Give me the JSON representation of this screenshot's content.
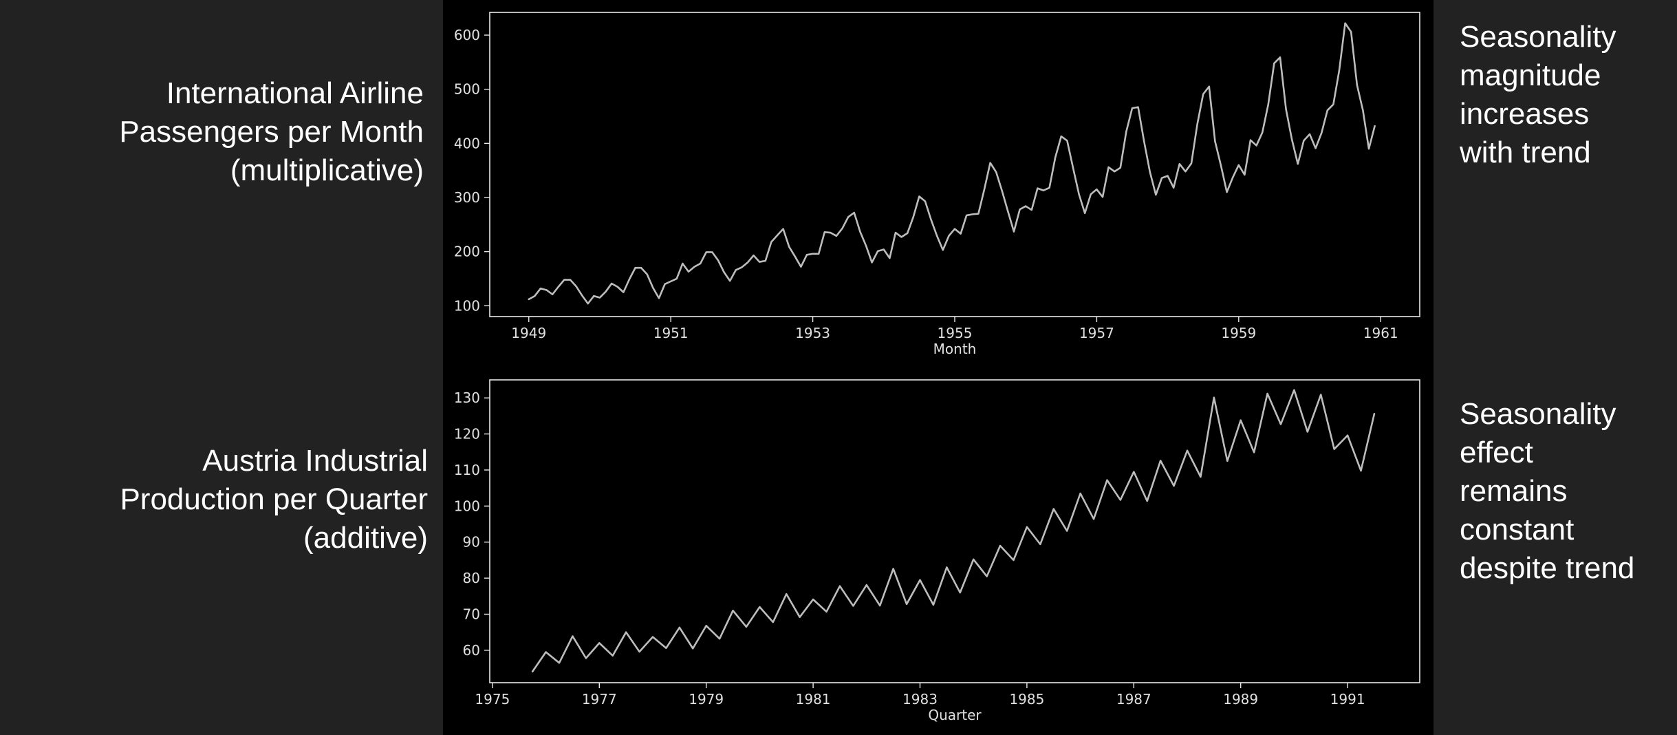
{
  "labels": {
    "top_left": [
      "International Airline",
      "Passengers per Month",
      "(multiplicative)"
    ],
    "bottom_left": [
      "Austria Industrial",
      "Production per Quarter",
      "(additive)"
    ],
    "top_right": [
      "Seasonality",
      "magnitude",
      "increases",
      "with trend"
    ],
    "bottom_right": [
      "Seasonality",
      "effect",
      "remains",
      "constant",
      "despite trend"
    ]
  },
  "colors": {
    "background": "#222222",
    "plot_background": "#000000",
    "line": "#bdbdbd",
    "frame": "#e8e8e8",
    "text": "#ffffff"
  },
  "chart_data": [
    {
      "type": "line",
      "xlabel": "Month",
      "ylabel": "",
      "x_start": 1949,
      "x_step": 0.08333,
      "xlim": [
        1948.45,
        1961.55
      ],
      "ylim": [
        80,
        642
      ],
      "xticks": [
        1949,
        1951,
        1953,
        1955,
        1957,
        1959,
        1961
      ],
      "yticks": [
        100,
        200,
        300,
        400,
        500,
        600
      ],
      "series": [
        {
          "values": [
            112,
            118,
            132,
            129,
            121,
            135,
            148,
            148,
            136,
            119,
            104,
            118,
            115,
            126,
            141,
            135,
            125,
            149,
            170,
            170,
            158,
            133,
            114,
            140,
            145,
            150,
            178,
            163,
            172,
            178,
            199,
            199,
            184,
            162,
            146,
            166,
            171,
            180,
            193,
            181,
            183,
            218,
            230,
            242,
            209,
            191,
            172,
            194,
            196,
            196,
            236,
            235,
            229,
            243,
            264,
            272,
            237,
            211,
            180,
            201,
            204,
            188,
            235,
            227,
            234,
            264,
            302,
            293,
            259,
            229,
            203,
            229,
            242,
            233,
            267,
            269,
            270,
            315,
            364,
            347,
            312,
            274,
            237,
            278,
            284,
            277,
            317,
            313,
            318,
            374,
            413,
            405,
            355,
            306,
            271,
            306,
            315,
            301,
            356,
            348,
            355,
            422,
            465,
            467,
            404,
            347,
            305,
            336,
            340,
            318,
            362,
            348,
            363,
            435,
            491,
            505,
            404,
            359,
            310,
            337,
            360,
            342,
            406,
            396,
            420,
            472,
            548,
            559,
            463,
            407,
            362,
            405,
            417,
            391,
            419,
            461,
            472,
            535,
            622,
            606,
            508,
            461,
            390,
            432
          ]
        }
      ]
    },
    {
      "type": "line",
      "xlabel": "Quarter",
      "ylabel": "",
      "x_start": 1975.75,
      "x_step": 0.25,
      "xlim": [
        1974.95,
        1992.35
      ],
      "ylim": [
        51,
        135
      ],
      "xticks": [
        1975,
        1977,
        1979,
        1981,
        1983,
        1985,
        1987,
        1989,
        1991
      ],
      "yticks": [
        60,
        70,
        80,
        90,
        100,
        110,
        120,
        130
      ],
      "series": [
        {
          "values": [
            54.1,
            59.5,
            56.5,
            63.9,
            57.8,
            62.0,
            58.5,
            65.0,
            59.6,
            63.7,
            60.6,
            66.3,
            60.5,
            66.8,
            63.2,
            71.0,
            66.5,
            72.0,
            67.8,
            75.6,
            69.2,
            74.1,
            70.7,
            77.8,
            72.3,
            78.1,
            72.4,
            82.6,
            72.8,
            79.5,
            72.6,
            83.0,
            76.0,
            85.2,
            80.5,
            89.0,
            85.0,
            94.2,
            89.4,
            99.2,
            93.1,
            103.5,
            96.4,
            107.2,
            101.7,
            109.5,
            101.4,
            112.6,
            105.6,
            115.4,
            108.1,
            130.1,
            112.5,
            123.8,
            114.9,
            131.2,
            122.7,
            132.2,
            120.6,
            130.9,
            115.8,
            119.6,
            109.8,
            125.6
          ]
        }
      ]
    }
  ]
}
